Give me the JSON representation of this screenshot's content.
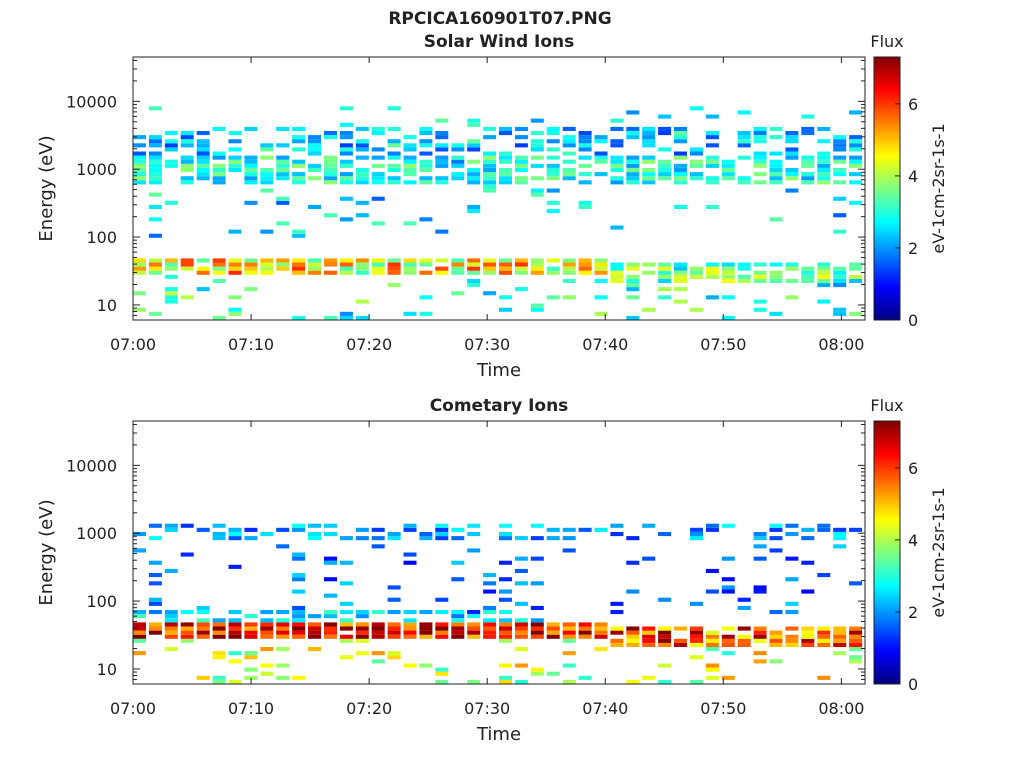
{
  "figure_title": "RPCICA160901T07.PNG",
  "colormap": [
    "#00007f",
    "#0000ff",
    "#007fff",
    "#00ffff",
    "#7fff7f",
    "#ffff00",
    "#ff7f00",
    "#ff0000",
    "#7f0000"
  ],
  "chart_data": [
    {
      "type": "heatmap",
      "title": "Solar Wind Ions",
      "xlabel": "Time",
      "ylabel": "Energy (eV)",
      "xlim": [
        "07:00",
        "08:02"
      ],
      "xticks": [
        "07:00",
        "07:10",
        "07:20",
        "07:30",
        "07:40",
        "07:50",
        "08:00"
      ],
      "y_scale": "log",
      "ylim": [
        6,
        45000
      ],
      "yticks": [
        "10",
        "100",
        "1000",
        "10000"
      ],
      "colorbar": {
        "title": "Flux",
        "label": "eV-1cm-2sr-1s-1",
        "range": [
          0,
          7.3
        ],
        "ticks": [
          "0",
          "2",
          "4",
          "6"
        ]
      },
      "bands": [
        {
          "e_lo": 100,
          "e_hi": 9000,
          "time_from": 0,
          "time_to": 62,
          "flux_center": 2.5,
          "flux_spread": 1.0,
          "fill": 0.06
        },
        {
          "e_lo": 600,
          "e_hi": 1500,
          "time_from": 0,
          "time_to": 62,
          "flux_center": 2.9,
          "flux_spread": 0.9,
          "fill": 0.7
        },
        {
          "e_lo": 1500,
          "e_hi": 4000,
          "time_from": 0,
          "time_to": 62,
          "flux_center": 2.2,
          "flux_spread": 0.9,
          "fill": 0.5
        },
        {
          "e_lo": 28,
          "e_hi": 52,
          "time_from": 0,
          "time_to": 40,
          "flux_center": 4.6,
          "flux_spread": 1.5,
          "fill": 0.95
        },
        {
          "e_lo": 22,
          "e_hi": 40,
          "time_from": 40,
          "time_to": 62,
          "flux_center": 3.5,
          "flux_spread": 1.2,
          "fill": 0.75
        },
        {
          "e_lo": 6,
          "e_hi": 28,
          "time_from": 0,
          "time_to": 62,
          "flux_center": 3.0,
          "flux_spread": 1.2,
          "fill": 0.1
        }
      ]
    },
    {
      "type": "heatmap",
      "title": "Cometary Ions",
      "xlabel": "Time",
      "ylabel": "Energy (eV)",
      "xlim": [
        "07:00",
        "08:02"
      ],
      "xticks": [
        "07:00",
        "07:10",
        "07:20",
        "07:30",
        "07:40",
        "07:50",
        "08:00"
      ],
      "y_scale": "log",
      "ylim": [
        6,
        45000
      ],
      "yticks": [
        "10",
        "100",
        "1000",
        "10000"
      ],
      "colorbar": {
        "title": "Flux",
        "label": "eV-1cm-2sr-1s-1",
        "range": [
          0,
          7.3
        ],
        "ticks": [
          "0",
          "2",
          "4",
          "6"
        ]
      },
      "bands": [
        {
          "e_lo": 800,
          "e_hi": 1300,
          "time_from": 0,
          "time_to": 62,
          "flux_center": 2.0,
          "flux_spread": 0.8,
          "fill": 0.45
        },
        {
          "e_lo": 60,
          "e_hi": 700,
          "time_from": 0,
          "time_to": 62,
          "flux_center": 1.7,
          "flux_spread": 0.8,
          "fill": 0.1
        },
        {
          "e_lo": 50,
          "e_hi": 70,
          "time_from": 0,
          "time_to": 35,
          "flux_center": 2.5,
          "flux_spread": 0.8,
          "fill": 0.55
        },
        {
          "e_lo": 28,
          "e_hi": 50,
          "time_from": 0,
          "time_to": 40,
          "flux_center": 6.4,
          "flux_spread": 1.4,
          "fill": 0.97
        },
        {
          "e_lo": 22,
          "e_hi": 42,
          "time_from": 40,
          "time_to": 62,
          "flux_center": 5.8,
          "flux_spread": 1.6,
          "fill": 0.85
        },
        {
          "e_lo": 6,
          "e_hi": 28,
          "time_from": 0,
          "time_to": 62,
          "flux_center": 4.2,
          "flux_spread": 1.2,
          "fill": 0.15
        }
      ]
    }
  ]
}
